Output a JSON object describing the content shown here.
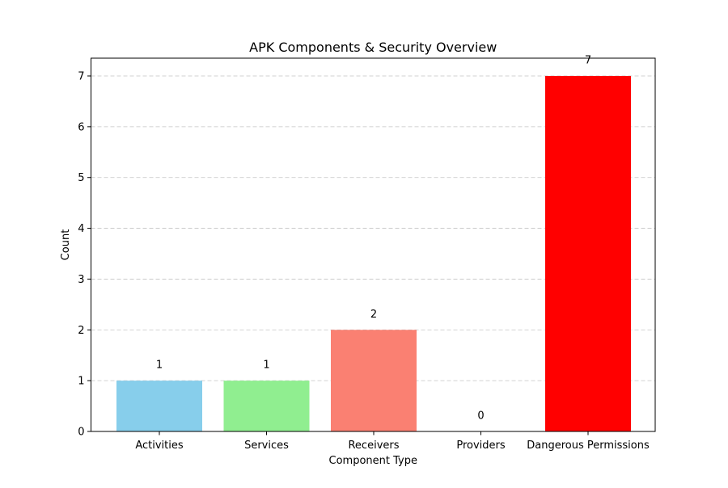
{
  "chart_data": {
    "type": "bar",
    "title": "APK Components & Security Overview",
    "xlabel": "Component Type",
    "ylabel": "Count",
    "categories": [
      "Activities",
      "Services",
      "Receivers",
      "Providers",
      "Dangerous Permissions"
    ],
    "values": [
      1,
      1,
      2,
      0,
      7
    ],
    "colors": [
      "#87ceeb",
      "#90ee90",
      "#fa8072",
      "#d3d3d3",
      "#ff0000"
    ],
    "ylim": [
      0,
      7.35
    ],
    "yticks": [
      0,
      1,
      2,
      3,
      4,
      5,
      6,
      7
    ],
    "grid": {
      "axis": "y",
      "style": "dashed"
    },
    "data_labels": [
      "1",
      "1",
      "2",
      "0",
      "7"
    ]
  }
}
